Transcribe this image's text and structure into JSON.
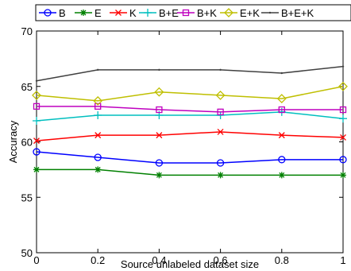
{
  "chart_data": {
    "type": "line",
    "title": "",
    "xlabel": "Source unlabeled dataset size",
    "ylabel": "Accuracy",
    "xlim": [
      0,
      1
    ],
    "ylim": [
      50,
      70
    ],
    "x": [
      0,
      0.2,
      0.4,
      0.6,
      0.8,
      1
    ],
    "x_ticks": [
      0,
      0.2,
      0.4,
      0.6,
      0.8,
      1
    ],
    "x_tick_labels": [
      "0",
      "0.2",
      "0.4",
      "0.6",
      "0.8",
      "1"
    ],
    "y_ticks": [
      50,
      55,
      60,
      65,
      70
    ],
    "y_tick_labels": [
      "50",
      "55",
      "60",
      "65",
      "70"
    ],
    "grid": false,
    "legend": {
      "placement": "top",
      "columns": 7
    },
    "series": [
      {
        "name": "B",
        "color": "#0000ff",
        "marker": "circle",
        "values": [
          59.1,
          58.6,
          58.1,
          58.1,
          58.4,
          58.4
        ]
      },
      {
        "name": "E",
        "color": "#008000",
        "marker": "asterisk",
        "values": [
          57.5,
          57.5,
          57.0,
          57.0,
          57.0,
          57.0
        ]
      },
      {
        "name": "K",
        "color": "#ff0000",
        "marker": "x",
        "values": [
          60.1,
          60.6,
          60.6,
          60.9,
          60.6,
          60.4
        ]
      },
      {
        "name": "B+E",
        "color": "#00bfbf",
        "marker": "plus",
        "values": [
          61.9,
          62.4,
          62.4,
          62.4,
          62.7,
          62.1
        ]
      },
      {
        "name": "B+K",
        "color": "#bf00bf",
        "marker": "square",
        "values": [
          63.2,
          63.2,
          62.9,
          62.7,
          62.9,
          62.9
        ]
      },
      {
        "name": "E+K",
        "color": "#bfbf00",
        "marker": "diamond",
        "values": [
          64.2,
          63.7,
          64.5,
          64.2,
          63.9,
          65.0
        ]
      },
      {
        "name": "B+E+K",
        "color": "#404040",
        "marker": "dot",
        "values": [
          65.5,
          66.5,
          66.5,
          66.5,
          66.2,
          66.8
        ]
      }
    ]
  }
}
